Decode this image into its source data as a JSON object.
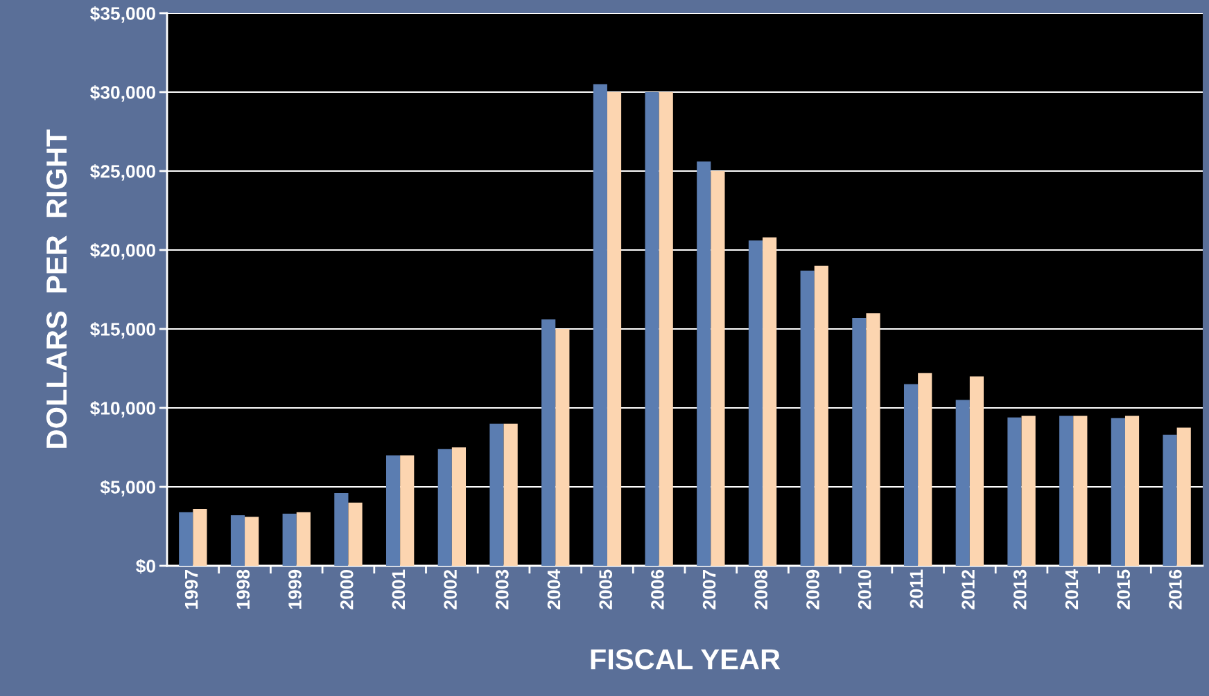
{
  "chart_data": {
    "type": "bar",
    "xlabel": "FISCAL YEAR",
    "ylabel": "DOLLARS  PER  RIGHT",
    "categories": [
      "1997",
      "1998",
      "1999",
      "2000",
      "2001",
      "2002",
      "2003",
      "2004",
      "2005",
      "2006",
      "2007",
      "2008",
      "2009",
      "2010",
      "2011",
      "2012",
      "2013",
      "2014",
      "2015",
      "2016"
    ],
    "series": [
      {
        "color": "#5b7db1",
        "values": [
          3400,
          3200,
          3300,
          4600,
          7000,
          7400,
          9000,
          15600,
          30500,
          30000,
          25600,
          20600,
          18700,
          15700,
          11500,
          10500,
          9400,
          9500,
          9350,
          8300
        ]
      },
      {
        "color": "#fcd5b0",
        "values": [
          3600,
          3100,
          3400,
          4000,
          7000,
          7500,
          9000,
          15000,
          30000,
          30000,
          25000,
          20800,
          19000,
          16000,
          12200,
          12000,
          9500,
          9500,
          9500,
          8750
        ]
      }
    ],
    "ylim": [
      0,
      35000
    ],
    "yticks": [
      {
        "value": 0,
        "label": "$0"
      },
      {
        "value": 5000,
        "label": "$5,000"
      },
      {
        "value": 10000,
        "label": "$10,000"
      },
      {
        "value": 15000,
        "label": "$15,000"
      },
      {
        "value": 20000,
        "label": "$20,000"
      },
      {
        "value": 25000,
        "label": "$25,000"
      },
      {
        "value": 30000,
        "label": "$30,000"
      },
      {
        "value": 35000,
        "label": "$35,000"
      }
    ],
    "grid": "y",
    "legend": false
  }
}
